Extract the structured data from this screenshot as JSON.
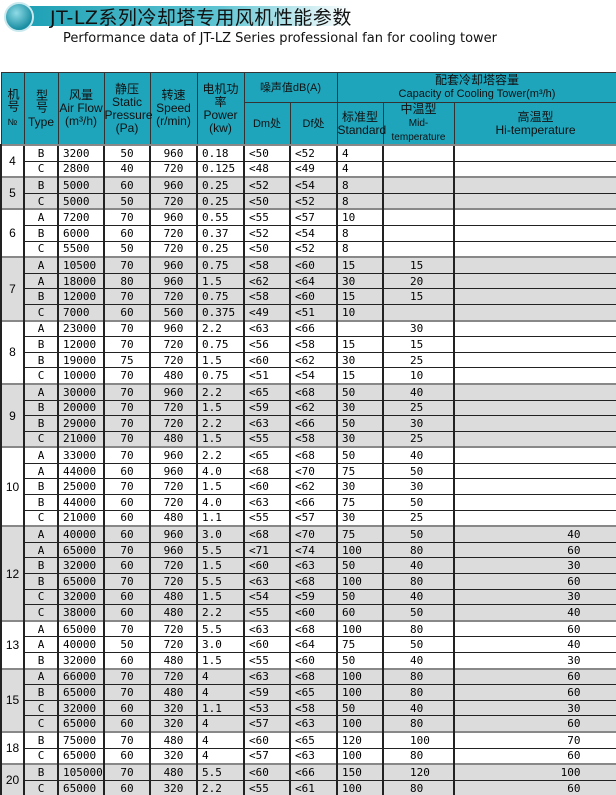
{
  "title": "JT-LZ系列冷却塔专用风机性能参数",
  "subtitle": "Performance data of  JT-LZ Series professional fan for cooling tower",
  "colors": {
    "header": "#1ea4bb",
    "alt_row": "#dcdcdc"
  },
  "headers": {
    "no_cn": "机号",
    "no_en": "№",
    "type_cn": "型号",
    "type_en": "Type",
    "flow_cn": "风量",
    "flow_en": "Air Flow",
    "flow_unit": "(m³/h)",
    "pressure_cn": "静压",
    "pressure_en": "Static Pressure",
    "pressure_unit": "(Pa)",
    "speed_cn": "转速",
    "speed_en": "Speed",
    "speed_unit": "(r/min)",
    "power_cn": "电机功率",
    "power_en": "Power",
    "power_unit": "(kw)",
    "noise": "噪声值dB(A)",
    "dm": "Dm处",
    "df": "Df处",
    "capacity_cn": "配套冷却塔容量",
    "capacity_en": "Capacity of Cooling Tower(m³/h)",
    "std_cn": "标准型",
    "std_en": "Standard",
    "mid_cn": "中温型",
    "mid_en": "Mid-temperature",
    "hi_cn": "高温型",
    "hi_en": "Hi-temperature"
  },
  "groups": [
    {
      "no": "4",
      "rows": [
        [
          "B",
          "3200",
          "50",
          "960",
          "0.18",
          "<50",
          "<52",
          "4",
          "",
          ""
        ],
        [
          "C",
          "2800",
          "40",
          "720",
          "0.125",
          "<48",
          "<49",
          "4",
          "",
          ""
        ]
      ]
    },
    {
      "no": "5",
      "rows": [
        [
          "B",
          "5000",
          "60",
          "960",
          "0.25",
          "<52",
          "<54",
          "8",
          "",
          ""
        ],
        [
          "C",
          "5000",
          "50",
          "720",
          "0.25",
          "<50",
          "<52",
          "8",
          "",
          ""
        ]
      ]
    },
    {
      "no": "6",
      "rows": [
        [
          "A",
          "7200",
          "70",
          "960",
          "0.55",
          "<55",
          "<57",
          "10",
          "",
          ""
        ],
        [
          "B",
          "6000",
          "60",
          "720",
          "0.37",
          "<52",
          "<54",
          "8",
          "",
          ""
        ],
        [
          "C",
          "5500",
          "50",
          "720",
          "0.25",
          "<50",
          "<52",
          "8",
          "",
          ""
        ]
      ]
    },
    {
      "no": "7",
      "rows": [
        [
          "A",
          "10500",
          "70",
          "960",
          "0.75",
          "<58",
          "<60",
          "15",
          "15",
          ""
        ],
        [
          "A",
          "18000",
          "80",
          "960",
          "1.5",
          "<62",
          "<64",
          "30",
          "20",
          ""
        ],
        [
          "B",
          "12000",
          "70",
          "720",
          "0.75",
          "<58",
          "<60",
          "15",
          "15",
          ""
        ],
        [
          "C",
          "7000",
          "60",
          "560",
          "0.375",
          "<49",
          "<51",
          "10",
          "",
          ""
        ]
      ]
    },
    {
      "no": "8",
      "rows": [
        [
          "A",
          "23000",
          "70",
          "960",
          "2.2",
          "<63",
          "<66",
          "",
          "30",
          ""
        ],
        [
          "B",
          "12000",
          "70",
          "720",
          "0.75",
          "<56",
          "<58",
          "15",
          "15",
          ""
        ],
        [
          "B",
          "19000",
          "75",
          "720",
          "1.5",
          "<60",
          "<62",
          "30",
          "25",
          ""
        ],
        [
          "C",
          "10000",
          "70",
          "480",
          "0.75",
          "<51",
          "<54",
          "15",
          "10",
          ""
        ]
      ]
    },
    {
      "no": "9",
      "rows": [
        [
          "A",
          "30000",
          "70",
          "960",
          "2.2",
          "<65",
          "<68",
          "50",
          "40",
          ""
        ],
        [
          "B",
          "20000",
          "70",
          "720",
          "1.5",
          "<59",
          "<62",
          "30",
          "25",
          ""
        ],
        [
          "B",
          "29000",
          "70",
          "720",
          "2.2",
          "<63",
          "<66",
          "50",
          "30",
          ""
        ],
        [
          "C",
          "21000",
          "70",
          "480",
          "1.5",
          "<55",
          "<58",
          "30",
          "25",
          ""
        ]
      ]
    },
    {
      "no": "10",
      "rows": [
        [
          "A",
          "33000",
          "70",
          "960",
          "2.2",
          "<65",
          "<68",
          "50",
          "40",
          ""
        ],
        [
          "A",
          "44000",
          "60",
          "960",
          "4.0",
          "<68",
          "<70",
          "75",
          "50",
          ""
        ],
        [
          "B",
          "25000",
          "70",
          "720",
          "1.5",
          "<60",
          "<62",
          "30",
          "30",
          ""
        ],
        [
          "B",
          "44000",
          "60",
          "720",
          "4.0",
          "<63",
          "<66",
          "75",
          "50",
          ""
        ],
        [
          "C",
          "21000",
          "60",
          "480",
          "1.1",
          "<55",
          "<57",
          "30",
          "25",
          ""
        ]
      ]
    },
    {
      "no": "12",
      "rows": [
        [
          "A",
          "40000",
          "60",
          "960",
          "3.0",
          "<68",
          "<70",
          "75",
          "50",
          "40"
        ],
        [
          "A",
          "65000",
          "70",
          "960",
          "5.5",
          "<71",
          "<74",
          "100",
          "80",
          "60"
        ],
        [
          "B",
          "32000",
          "60",
          "720",
          "1.5",
          "<60",
          "<63",
          "50",
          "40",
          "30"
        ],
        [
          "B",
          "65000",
          "70",
          "720",
          "5.5",
          "<63",
          "<68",
          "100",
          "80",
          "60"
        ],
        [
          "C",
          "32000",
          "60",
          "480",
          "1.5",
          "<54",
          "<59",
          "50",
          "40",
          "30"
        ],
        [
          "C",
          "38000",
          "60",
          "480",
          "2.2",
          "<55",
          "<60",
          "60",
          "50",
          "40"
        ]
      ]
    },
    {
      "no": "13",
      "rows": [
        [
          "A",
          "65000",
          "70",
          "720",
          "5.5",
          "<63",
          "<68",
          "100",
          "80",
          "60"
        ],
        [
          "A",
          "40000",
          "50",
          "720",
          "3.0",
          "<60",
          "<64",
          "75",
          "50",
          "40"
        ],
        [
          "B",
          "32000",
          "60",
          "480",
          "1.5",
          "<55",
          "<60",
          "50",
          "40",
          "30"
        ]
      ]
    },
    {
      "no": "15",
      "rows": [
        [
          "A",
          "66000",
          "70",
          "720",
          "4",
          "<63",
          "<68",
          "100",
          "80",
          "60"
        ],
        [
          "B",
          "65000",
          "70",
          "480",
          "4",
          "<59",
          "<65",
          "100",
          "80",
          "60"
        ],
        [
          "C",
          "32000",
          "60",
          "320",
          "1.1",
          "<53",
          "<58",
          "50",
          "40",
          "30"
        ],
        [
          "C",
          "65000",
          "60",
          "320",
          "4",
          "<57",
          "<63",
          "100",
          "80",
          "60"
        ]
      ]
    },
    {
      "no": "18",
      "rows": [
        [
          "B",
          "75000",
          "70",
          "480",
          "4",
          "<60",
          "<65",
          "120",
          "100",
          "70"
        ],
        [
          "C",
          "65000",
          "60",
          "320",
          "4",
          "<57",
          "<63",
          "100",
          "80",
          "60"
        ]
      ]
    },
    {
      "no": "20",
      "rows": [
        [
          "B",
          "105000",
          "70",
          "480",
          "5.5",
          "<60",
          "<66",
          "150",
          "120",
          "100"
        ],
        [
          "C",
          "65000",
          "60",
          "320",
          "2.2",
          "<55",
          "<61",
          "100",
          "80",
          "60"
        ]
      ]
    }
  ]
}
